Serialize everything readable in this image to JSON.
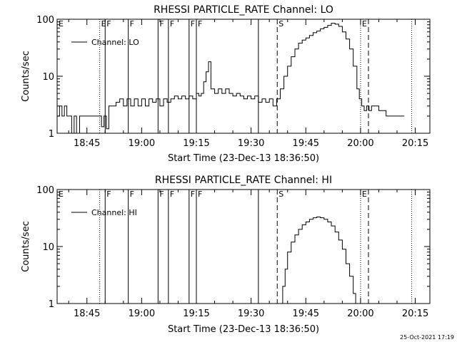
{
  "footer": {
    "timestamp": "25-Oct-2021 17:19"
  },
  "chart_data": [
    {
      "type": "line",
      "title": "RHESSI PARTICLE_RATE Channel: LO",
      "xlabel": "Start Time (23-Dec-13 18:36:50)",
      "ylabel": "Counts/sec",
      "yscale": "log",
      "ylim": [
        1,
        100
      ],
      "xlim": [
        "18:36:50",
        "20:19:00"
      ],
      "x_ticks": [
        "18:45",
        "19:00",
        "19:15",
        "19:30",
        "19:45",
        "20:00",
        "20:15"
      ],
      "y_ticks": [
        "1",
        "10",
        "100"
      ],
      "grid": false,
      "legend": {
        "position": "top-left",
        "entries": [
          "Channel: LO"
        ]
      },
      "series": [
        {
          "name": "Channel: LO",
          "x": [
            "18:36:50",
            "18:37:30",
            "18:38:10",
            "18:38:50",
            "18:39:30",
            "18:40:10",
            "18:40:50",
            "18:41:30",
            "18:42:10",
            "18:43:00",
            "18:44:00",
            "18:45:00",
            "18:46:00",
            "18:47:00",
            "18:48:00",
            "18:49:00",
            "18:49:40",
            "18:50:20",
            "18:51:00",
            "18:51:40",
            "18:52:20",
            "18:53:00",
            "18:54:00",
            "18:55:00",
            "18:56:00",
            "18:57:00",
            "18:58:00",
            "18:59:00",
            "19:00:00",
            "19:01:00",
            "19:02:00",
            "19:03:00",
            "19:04:00",
            "19:05:00",
            "19:06:00",
            "19:07:00",
            "19:08:00",
            "19:09:00",
            "19:10:00",
            "19:11:00",
            "19:12:00",
            "19:13:00",
            "19:14:00",
            "19:15:00",
            "19:15:40",
            "19:16:20",
            "19:17:00",
            "19:17:40",
            "19:18:20",
            "19:19:00",
            "19:20:00",
            "19:21:00",
            "19:22:00",
            "19:23:00",
            "19:24:00",
            "19:25:00",
            "19:26:00",
            "19:27:00",
            "19:28:00",
            "19:29:00",
            "19:30:00",
            "19:31:00",
            "19:32:00",
            "19:33:00",
            "19:34:00",
            "19:35:00",
            "19:36:00",
            "19:37:00",
            "19:38:00",
            "19:39:00",
            "19:40:00",
            "19:41:00",
            "19:42:00",
            "19:43:00",
            "19:44:00",
            "19:45:00",
            "19:46:00",
            "19:47:00",
            "19:48:00",
            "19:49:00",
            "19:50:00",
            "19:51:00",
            "19:52:00",
            "19:53:00",
            "19:54:00",
            "19:55:00",
            "19:56:00",
            "19:57:00",
            "19:58:00",
            "19:59:00",
            "19:59:40",
            "20:00:20",
            "20:01:00",
            "20:01:40",
            "20:02:20",
            "20:03:00",
            "20:04:00",
            "20:05:00",
            "20:06:00",
            "20:07:00",
            "20:08:00",
            "20:09:00",
            "20:10:00",
            "20:11:00",
            "20:12:00"
          ],
          "y": [
            2,
            3,
            2,
            3,
            2,
            2,
            1,
            2,
            1,
            2,
            2,
            2,
            2,
            2,
            2,
            1.3,
            2,
            1.2,
            3,
            3,
            3,
            3.5,
            4,
            3,
            4,
            3,
            4,
            3,
            4,
            3,
            4,
            3.5,
            4,
            3,
            4,
            3.5,
            4,
            4.5,
            4,
            4.5,
            4,
            4.5,
            4,
            5,
            4.5,
            5,
            8,
            12,
            18,
            6,
            5,
            6,
            5,
            6,
            5,
            4.5,
            5,
            4.5,
            4,
            4.5,
            4,
            4.5,
            3.5,
            4,
            3.5,
            4,
            3,
            4,
            6,
            10,
            15,
            22,
            30,
            38,
            43,
            47,
            52,
            58,
            62,
            68,
            72,
            78,
            85,
            82,
            75,
            60,
            45,
            30,
            15,
            6,
            4,
            3,
            2.5,
            3,
            2.5,
            3,
            3,
            2.5,
            2.5,
            2,
            2,
            2,
            2,
            2,
            2
          ]
        }
      ],
      "markers": [
        {
          "time": "18:48:30",
          "style": "dotted",
          "label": "E"
        },
        {
          "time": "18:50:00",
          "style": "solid",
          "label": "F"
        },
        {
          "time": "18:56:20",
          "style": "solid",
          "label": "F"
        },
        {
          "time": "19:04:30",
          "style": "solid",
          "label": "F"
        },
        {
          "time": "19:07:20",
          "style": "solid",
          "label": "F"
        },
        {
          "time": "19:13:00",
          "style": "solid",
          "label": "F"
        },
        {
          "time": "19:15:00",
          "style": "solid",
          "label": "F"
        },
        {
          "time": "19:32:00",
          "style": "solid",
          "label": ""
        },
        {
          "time": "19:37:10",
          "style": "dashed",
          "label": "S"
        },
        {
          "time": "20:00:00",
          "style": "dotted",
          "label": "E"
        },
        {
          "time": "20:02:10",
          "style": "dashed",
          "label": ""
        },
        {
          "time": "20:14:00",
          "style": "dotted",
          "label": ""
        }
      ],
      "marker_at_left_edge": "E"
    },
    {
      "type": "line",
      "title": "RHESSI PARTICLE_RATE Channel: HI",
      "xlabel": "Start Time (23-Dec-13 18:36:50)",
      "ylabel": "Counts/sec",
      "yscale": "log",
      "ylim": [
        1,
        100
      ],
      "xlim": [
        "18:36:50",
        "20:19:00"
      ],
      "x_ticks": [
        "18:45",
        "19:00",
        "19:15",
        "19:30",
        "19:45",
        "20:00",
        "20:15"
      ],
      "y_ticks": [
        "1",
        "10",
        "100"
      ],
      "grid": false,
      "legend": {
        "position": "top-left",
        "entries": [
          "Channel: HI"
        ]
      },
      "series": [
        {
          "name": "Channel: HI",
          "x": [
            "19:38:00",
            "19:38:40",
            "19:39:20",
            "19:40:00",
            "19:41:00",
            "19:42:00",
            "19:43:00",
            "19:44:00",
            "19:45:00",
            "19:46:00",
            "19:47:00",
            "19:48:00",
            "19:49:00",
            "19:50:00",
            "19:51:00",
            "19:52:00",
            "19:53:00",
            "19:54:00",
            "19:55:00",
            "19:56:00",
            "19:57:00",
            "19:58:00",
            "19:58:40"
          ],
          "y": [
            1,
            2,
            4,
            8,
            12,
            16,
            20,
            24,
            27,
            30,
            32,
            33,
            32,
            30,
            27,
            23,
            18,
            13,
            9,
            5,
            3,
            1.5,
            1
          ]
        }
      ],
      "markers": [
        {
          "time": "18:48:30",
          "style": "dotted",
          "label": ""
        },
        {
          "time": "18:50:00",
          "style": "solid",
          "label": "F"
        },
        {
          "time": "18:56:20",
          "style": "solid",
          "label": "F"
        },
        {
          "time": "19:04:30",
          "style": "solid",
          "label": "F"
        },
        {
          "time": "19:07:20",
          "style": "solid",
          "label": "F"
        },
        {
          "time": "19:13:00",
          "style": "solid",
          "label": "F"
        },
        {
          "time": "19:15:00",
          "style": "solid",
          "label": "F"
        },
        {
          "time": "19:32:00",
          "style": "solid",
          "label": ""
        },
        {
          "time": "19:37:10",
          "style": "dashed",
          "label": "S"
        },
        {
          "time": "20:00:00",
          "style": "dotted",
          "label": "E"
        },
        {
          "time": "20:02:10",
          "style": "dashed",
          "label": ""
        },
        {
          "time": "20:14:00",
          "style": "dotted",
          "label": ""
        }
      ],
      "marker_at_left_edge": "E"
    }
  ]
}
